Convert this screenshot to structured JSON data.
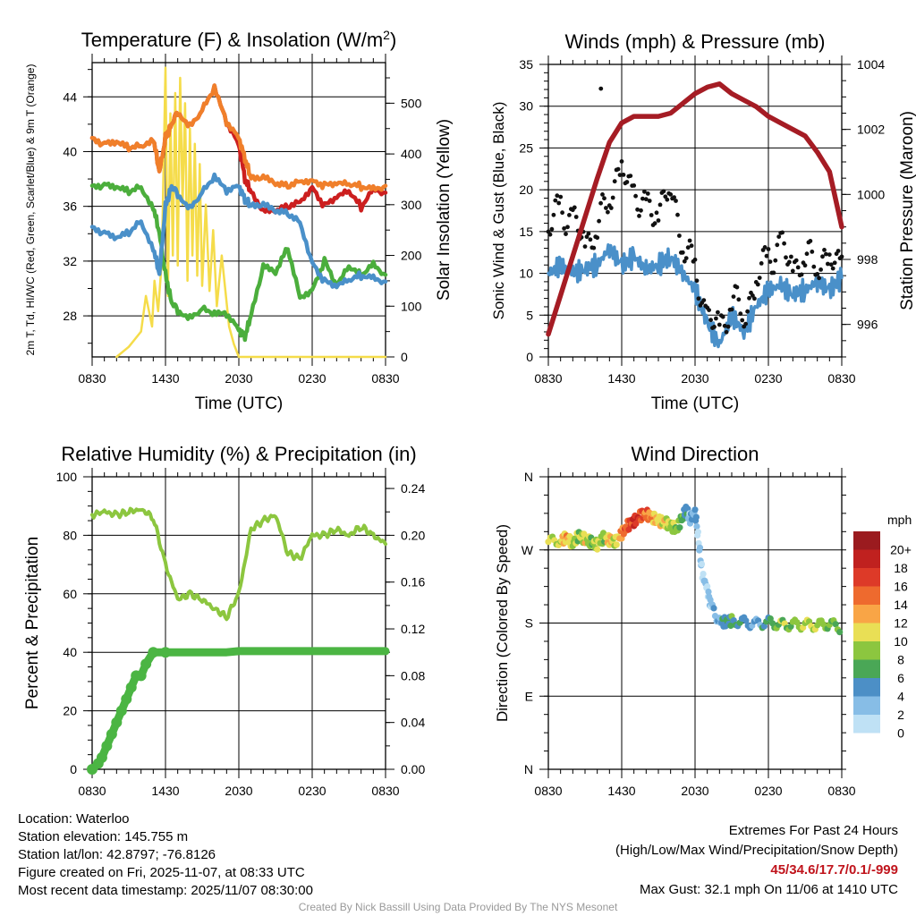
{
  "chart_data": [
    {
      "type": "line",
      "title": "Temperature (F) & Insolation (W/m²)",
      "xlabel": "Time (UTC)",
      "ylabel": "2m T, Td, HI/WC (Red, Green, Scarlet/Blue) & 9m T (Orange)",
      "y2label": "Solar Insolation (Yellow)",
      "xticks": [
        "0830",
        "1430",
        "2030",
        "0230",
        "0830"
      ],
      "ylim": [
        25,
        46.5
      ],
      "yticks": [
        28,
        32,
        36,
        40,
        44
      ],
      "y2lim": [
        0,
        580
      ],
      "y2ticks": [
        0,
        100,
        200,
        300,
        400,
        500
      ],
      "x_hours": [
        0,
        1,
        2,
        3,
        4,
        5,
        5.5,
        6,
        6.5,
        7,
        8,
        9,
        10,
        11,
        12,
        12.5,
        13,
        14,
        15,
        16,
        17,
        18,
        19,
        20,
        21,
        22,
        23,
        24
      ],
      "series": [
        {
          "name": "2m T",
          "color": "#cc1f1f",
          "values": [
            41,
            40.5,
            40.5,
            40.2,
            40.5,
            41,
            38.5,
            41,
            42,
            43,
            42,
            43,
            44.5,
            42,
            40.5,
            38,
            37,
            35.5,
            35.5,
            36,
            36.5,
            37.5,
            36,
            36.5,
            37,
            36,
            37.5,
            37
          ]
        },
        {
          "name": "9m T",
          "color": "#f07f2a",
          "values": [
            41,
            40.5,
            40.5,
            40.2,
            40.5,
            41,
            38.5,
            41,
            42,
            43,
            42,
            43,
            44.5,
            42,
            41,
            39.5,
            38,
            38,
            37.5,
            37.5,
            38,
            38,
            37.5,
            37.5,
            37.5,
            37.5,
            37.5,
            37.5
          ]
        },
        {
          "name": "Dewpoint",
          "color": "#4bae3c",
          "values": [
            37.5,
            37.5,
            37.2,
            37,
            37.5,
            36,
            34,
            31,
            29,
            28.5,
            28,
            28.5,
            28,
            28,
            27,
            26.5,
            28,
            31.5,
            31,
            33,
            29.5,
            30,
            32,
            30,
            31.5,
            31,
            32,
            31
          ]
        },
        {
          "name": "HI/WC",
          "color": "#4a90c9",
          "values": [
            34.5,
            34,
            33.5,
            34,
            35,
            33,
            31,
            36,
            37.5,
            37,
            36,
            37,
            38,
            37,
            37.5,
            36.5,
            36,
            36,
            35.5,
            35.5,
            35,
            32,
            30.5,
            30,
            30.5,
            31,
            31,
            30.5
          ]
        }
      ],
      "insolation": {
        "name": "Solar Insolation",
        "color": "#f5dc4a",
        "x_hours": [
          2,
          3,
          4,
          4.4,
          4.9,
          5.1,
          5.4,
          5.7,
          6,
          6.2,
          6.4,
          6.6,
          6.8,
          7,
          7.2,
          7.4,
          7.6,
          7.8,
          8,
          8.2,
          8.4,
          8.6,
          8.8,
          9,
          9.3,
          9.6,
          9.9,
          10.2,
          10.6,
          11.2,
          11.6,
          12,
          13,
          24
        ],
        "values": [
          0,
          20,
          50,
          120,
          60,
          150,
          90,
          190,
          570,
          120,
          480,
          200,
          520,
          180,
          550,
          300,
          500,
          150,
          450,
          200,
          420,
          160,
          380,
          140,
          300,
          130,
          250,
          100,
          200,
          60,
          25,
          0,
          0,
          0
        ]
      }
    },
    {
      "type": "line",
      "title": "Winds (mph) & Pressure (mb)",
      "xlabel": "Time (UTC)",
      "ylabel": "Sonic Wind & Gust (Blue, Black)",
      "y2label": "Station Pressure (Maroon)",
      "xticks": [
        "0830",
        "1430",
        "2030",
        "0230",
        "0830"
      ],
      "ylim": [
        0,
        35
      ],
      "yticks": [
        0,
        5,
        10,
        15,
        20,
        25,
        30,
        35
      ],
      "y2lim": [
        995,
        1004
      ],
      "y2ticks": [
        996,
        998,
        1000,
        1002,
        1004
      ],
      "x_hours": [
        0,
        1,
        2,
        3,
        4,
        5,
        6,
        7,
        8,
        9,
        10,
        11,
        12,
        13,
        14,
        15,
        16,
        17,
        18,
        19,
        20,
        21,
        22,
        23,
        24
      ],
      "wind": {
        "color": "#4a90c9",
        "values": [
          10,
          11,
          10,
          10.5,
          11,
          13,
          11,
          12,
          10.5,
          11,
          12,
          10,
          8,
          4,
          1.5,
          5,
          3,
          6,
          8,
          8.5,
          7.5,
          8,
          9,
          8,
          9.5
        ]
      },
      "gust": {
        "color": "#111111",
        "values": [
          15,
          18,
          16,
          14,
          15,
          20,
          22,
          20,
          17,
          18,
          20,
          14,
          10,
          5,
          3,
          7,
          5,
          9,
          12,
          13,
          11,
          11.5,
          12,
          11,
          12
        ]
      },
      "gust_max": 32.1,
      "pressure": {
        "color": "#a51c24",
        "values": [
          995.7,
          996.9,
          998.1,
          999.3,
          1000.5,
          1001.6,
          1002.2,
          1002.4,
          1002.4,
          1002.4,
          1002.5,
          1002.8,
          1003.1,
          1003.3,
          1003.4,
          1003.1,
          1002.9,
          1002.7,
          1002.4,
          1002.2,
          1002,
          1001.8,
          1001.3,
          1000.7,
          999.0
        ]
      }
    },
    {
      "type": "line",
      "title": "Relative Humidity (%) & Precipitation (in)",
      "ylabel": "Percent & Precipitation",
      "xticks": [
        "0830",
        "1430",
        "2030",
        "0230",
        "0830"
      ],
      "ylim": [
        0,
        100
      ],
      "yticks": [
        0,
        20,
        40,
        60,
        80,
        100
      ],
      "y2lim": [
        0,
        0.25
      ],
      "y2ticks": [
        "0.00",
        "0.04",
        "0.08",
        "0.12",
        "0.16",
        "0.20",
        "0.24"
      ],
      "rh": {
        "color": "#8cc63f",
        "x_hours": [
          0,
          1,
          2,
          3,
          4,
          5,
          6,
          7,
          8,
          9,
          10,
          11,
          12,
          13,
          14,
          15,
          16,
          17,
          18,
          19,
          20,
          21,
          22,
          23,
          24
        ],
        "values": [
          87,
          88,
          87,
          88,
          89,
          86,
          70,
          58,
          60,
          58,
          55,
          52,
          60,
          82,
          85,
          87,
          74,
          72,
          80,
          80,
          82,
          80,
          83,
          80,
          77
        ]
      },
      "precip": {
        "color": "#4bb543",
        "x_hours": [
          0,
          0.5,
          0.8,
          1.2,
          1.6,
          2,
          2.4,
          2.8,
          3.2,
          3.6,
          4,
          4.4,
          5,
          6,
          8,
          10,
          11,
          12,
          16,
          20,
          24
        ],
        "values": [
          0,
          0.005,
          0.01,
          0.02,
          0.03,
          0.04,
          0.05,
          0.06,
          0.07,
          0.08,
          0.08,
          0.09,
          0.1,
          0.1,
          0.1,
          0.1,
          0.1,
          0.101,
          0.101,
          0.101,
          0.101
        ]
      }
    },
    {
      "type": "scatter",
      "title": "Wind Direction",
      "ylabel": "Direction (Colored By Speed)",
      "xticks": [
        "0830",
        "1430",
        "2030",
        "0230",
        "0830"
      ],
      "ylim": [
        0,
        360
      ],
      "yticks": [
        "N",
        "E",
        "S",
        "W",
        "N"
      ],
      "x_hours": [
        0,
        1,
        1.5,
        2,
        2.5,
        3,
        3.5,
        4,
        4.5,
        5,
        5.5,
        6,
        6.5,
        7,
        7.5,
        8,
        8.5,
        9,
        9.5,
        10,
        10.5,
        11,
        11.3,
        11.6,
        12,
        12.3,
        12.6,
        13,
        13.3,
        14,
        14.5,
        15,
        16,
        17,
        18,
        19,
        20,
        21,
        22,
        23,
        24
      ],
      "direction": [
        280,
        282,
        285,
        278,
        288,
        283,
        280,
        276,
        285,
        282,
        280,
        290,
        300,
        305,
        312,
        314,
        310,
        306,
        304,
        300,
        295,
        312,
        318,
        308,
        318,
        280,
        240,
        222,
        200,
        182,
        181,
        183,
        181,
        179,
        181,
        178,
        178,
        178,
        177,
        179,
        174
      ],
      "speed": [
        10,
        9,
        12,
        9,
        8,
        11,
        7,
        10,
        7,
        12,
        9,
        13,
        15,
        17,
        16,
        14,
        12,
        11,
        10,
        9,
        8,
        6,
        4,
        2,
        3,
        1,
        1,
        1,
        2,
        3,
        5,
        6,
        4,
        3,
        5,
        8,
        7,
        9,
        8,
        7,
        8
      ],
      "colorbar": {
        "title": "mph",
        "labels": [
          "20+",
          "18",
          "16",
          "14",
          "12",
          "10",
          "8",
          "6",
          "4",
          "2",
          "0"
        ],
        "colors": [
          "#9b1b1f",
          "#c0211f",
          "#dd3a28",
          "#ee6a2e",
          "#f9a546",
          "#e9df55",
          "#8cc63f",
          "#4aa756",
          "#4c8fc6",
          "#87bde6",
          "#bfe1f5"
        ]
      }
    }
  ],
  "info": {
    "location": "Location: Waterloo",
    "elevation": "Station elevation: 145.755 m",
    "latlon": "Station lat/lon: 42.8797; -76.8126",
    "created": "Figure created on Fri, 2025-11-07, at 08:33 UTC",
    "recent": "Most recent data timestamp: 2025/11/07 08:30:00"
  },
  "extremes": {
    "title": "Extremes For Past 24 Hours",
    "subtitle": "(High/Low/Max Wind/Precipitation/Snow Depth)",
    "values": "45/34.6/17.7/0.1/-999",
    "gust": "Max Gust: 32.1 mph On 11/06 at 1410 UTC"
  },
  "credit": "Created By Nick Bassill Using Data Provided By The NYS Mesonet"
}
